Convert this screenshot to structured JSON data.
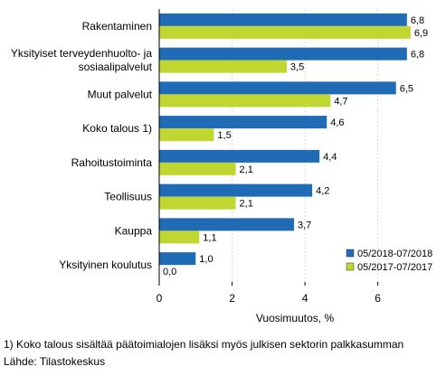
{
  "chart_data": {
    "type": "bar",
    "orientation": "horizontal",
    "categories": [
      [
        "Rakentaminen"
      ],
      [
        "Yksityiset terveydenhuolto- ja",
        "sosiaalipalvelut"
      ],
      [
        "Muut palvelut"
      ],
      [
        "Koko talous 1)"
      ],
      [
        "Rahoitustoiminta"
      ],
      [
        "Teollisuus"
      ],
      [
        "Kauppa"
      ],
      [
        "Yksityinen koulutus"
      ]
    ],
    "series": [
      {
        "name": "05/2018-07/2018",
        "color": "#1f6bb5",
        "values": [
          6.8,
          6.8,
          6.5,
          4.6,
          4.4,
          4.2,
          3.7,
          1.0
        ],
        "labels": [
          "6,8",
          "6,8",
          "6,5",
          "4,6",
          "4,4",
          "4,2",
          "3,7",
          "1,0"
        ]
      },
      {
        "name": "05/2017-07/2017",
        "color": "#bfd730",
        "values": [
          6.9,
          3.5,
          4.7,
          1.5,
          2.1,
          2.1,
          1.1,
          0.0
        ],
        "labels": [
          "6,9",
          "3,5",
          "4,7",
          "1,5",
          "2,1",
          "2,1",
          "1,1",
          "0,0"
        ]
      }
    ],
    "xlabel": "Vuosimuutos, %",
    "xlim": [
      0,
      7.5
    ],
    "xticks": [
      0,
      2,
      4,
      6
    ],
    "xtick_labels": [
      "0",
      "2",
      "4",
      "6"
    ],
    "grid": true,
    "legend": "bottom-right"
  },
  "footnotes": {
    "note": "1) Koko talous sisältää päätoimialojen lisäksi myös julkisen sektorin palkkasumman",
    "source": "Lähde: Tilastokeskus"
  }
}
